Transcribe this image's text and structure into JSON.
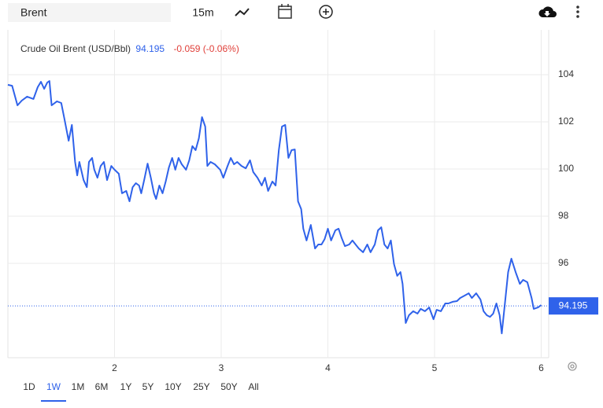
{
  "toolbar": {
    "symbol": "Brent",
    "interval": "15m"
  },
  "chart_data": {
    "type": "line",
    "title": "Crude Oil Brent (USD/Bbl)",
    "last_price": 94.195,
    "change": "-0.059 (-0.06%)",
    "color": "#2f62ea",
    "x": [
      1.0,
      1.04,
      1.09,
      1.13,
      1.18,
      1.24,
      1.28,
      1.31,
      1.34,
      1.37,
      1.39,
      1.41,
      1.46,
      1.5,
      1.53,
      1.57,
      1.6,
      1.63,
      1.65,
      1.67,
      1.71,
      1.74,
      1.76,
      1.79,
      1.81,
      1.84,
      1.87,
      1.9,
      1.93,
      1.97,
      2.0,
      2.04,
      2.07,
      2.11,
      2.14,
      2.17,
      2.2,
      2.23,
      2.25,
      2.28,
      2.31,
      2.34,
      2.37,
      2.39,
      2.42,
      2.45,
      2.48,
      2.51,
      2.54,
      2.57,
      2.6,
      2.63,
      2.67,
      2.7,
      2.73,
      2.76,
      2.79,
      2.82,
      2.85,
      2.87,
      2.9,
      2.94,
      2.99,
      3.02,
      3.06,
      3.09,
      3.12,
      3.15,
      3.19,
      3.23,
      3.27,
      3.3,
      3.34,
      3.38,
      3.41,
      3.44,
      3.48,
      3.51,
      3.54,
      3.57,
      3.6,
      3.63,
      3.66,
      3.69,
      3.72,
      3.75,
      3.77,
      3.8,
      3.84,
      3.88,
      3.91,
      3.94,
      3.97,
      4.0,
      4.03,
      4.07,
      4.1,
      4.13,
      4.16,
      4.2,
      4.23,
      4.26,
      4.29,
      4.33,
      4.37,
      4.4,
      4.44,
      4.47,
      4.5,
      4.53,
      4.56,
      4.59,
      4.62,
      4.65,
      4.68,
      4.7,
      4.73,
      4.76,
      4.8,
      4.84,
      4.87,
      4.91,
      4.95,
      4.99,
      5.02,
      5.06,
      5.1,
      5.13,
      5.17,
      5.21,
      5.24,
      5.28,
      5.32,
      5.35,
      5.39,
      5.43,
      5.46,
      5.49,
      5.52,
      5.55,
      5.58,
      5.61,
      5.63,
      5.66,
      5.69,
      5.72,
      5.76,
      5.8,
      5.83,
      5.87,
      5.91,
      5.93,
      5.97,
      6.0
    ],
    "values": [
      103.57,
      103.53,
      102.7,
      102.9,
      103.07,
      102.97,
      103.47,
      103.7,
      103.4,
      103.67,
      103.73,
      102.7,
      102.87,
      102.8,
      102.13,
      101.2,
      101.87,
      100.3,
      99.73,
      100.3,
      99.53,
      99.23,
      100.3,
      100.47,
      99.97,
      99.63,
      100.13,
      100.3,
      99.53,
      100.13,
      99.97,
      99.8,
      98.97,
      99.07,
      98.63,
      99.23,
      99.4,
      99.3,
      98.97,
      99.57,
      100.23,
      99.63,
      98.97,
      98.73,
      99.3,
      98.97,
      99.47,
      100.07,
      100.47,
      99.97,
      100.47,
      100.2,
      99.97,
      100.37,
      100.97,
      100.8,
      101.3,
      102.2,
      101.8,
      100.13,
      100.3,
      100.2,
      99.97,
      99.63,
      100.13,
      100.47,
      100.2,
      100.3,
      100.13,
      100.03,
      100.37,
      99.87,
      99.63,
      99.3,
      99.63,
      99.07,
      99.47,
      99.3,
      100.8,
      101.8,
      101.87,
      100.47,
      100.8,
      100.83,
      98.63,
      98.3,
      97.47,
      96.97,
      97.63,
      96.63,
      96.8,
      96.8,
      97.03,
      97.47,
      96.97,
      97.4,
      97.47,
      97.07,
      96.73,
      96.8,
      96.97,
      96.8,
      96.63,
      96.47,
      96.8,
      96.47,
      96.8,
      97.4,
      97.53,
      96.8,
      96.63,
      96.97,
      95.97,
      95.47,
      95.63,
      95.13,
      93.47,
      93.8,
      93.97,
      93.87,
      94.07,
      93.97,
      94.13,
      93.63,
      94.03,
      93.97,
      94.3,
      94.3,
      94.37,
      94.4,
      94.53,
      94.63,
      94.73,
      94.53,
      94.73,
      94.47,
      93.97,
      93.8,
      93.73,
      93.87,
      94.3,
      93.8,
      93.03,
      94.3,
      95.63,
      96.2,
      95.63,
      95.13,
      95.3,
      95.2,
      94.53,
      94.07,
      94.13,
      94.23
    ],
    "xlim": [
      1.0,
      6.07
    ],
    "ylim": [
      92,
      105.9
    ],
    "xticks": [
      2,
      3,
      4,
      5,
      6
    ],
    "yticks": [
      96,
      98,
      100,
      102,
      104
    ],
    "grid": true
  },
  "ranges": {
    "items": [
      "1D",
      "1W",
      "1M",
      "6M",
      "1Y",
      "5Y",
      "10Y",
      "25Y",
      "50Y",
      "All"
    ],
    "active": 1
  }
}
